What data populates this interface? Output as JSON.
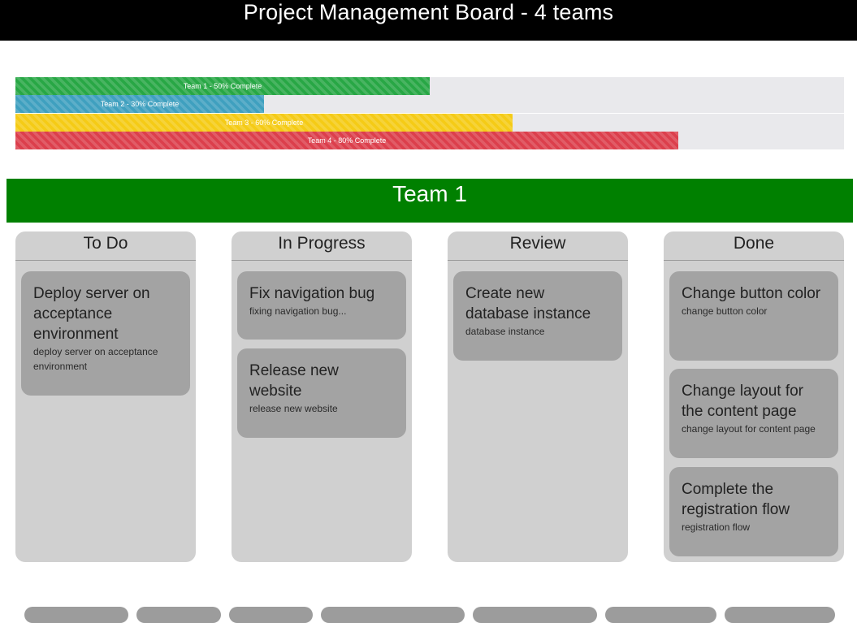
{
  "header": {
    "title": "Project Management Board - 4 teams"
  },
  "progress": [
    {
      "label": "Team 1 - 50% Complete",
      "percent": 50,
      "color": "#28a745"
    },
    {
      "label": "Team 2 - 30% Complete",
      "percent": 30,
      "color": "#3fa0bf"
    },
    {
      "label": "Team 3 - 60% Complete",
      "percent": 60,
      "color": "#f5cb16"
    },
    {
      "label": "Team 4 - 80% Complete",
      "percent": 80,
      "color": "#dc3f4c"
    }
  ],
  "board": {
    "team_title": "Team 1",
    "team_color": "#008000",
    "columns": [
      {
        "title": "To Do",
        "cards": [
          {
            "title": "Deploy server on acceptance environment",
            "desc": "deploy server on acceptance environment"
          }
        ]
      },
      {
        "title": "In Progress",
        "cards": [
          {
            "title": "Fix navigation bug",
            "desc": "fixing navigation bug..."
          },
          {
            "title": "Release new website",
            "desc": "release new website"
          }
        ]
      },
      {
        "title": "Review",
        "cards": [
          {
            "title": "Create new database instance",
            "desc": "database instance"
          }
        ]
      },
      {
        "title": "Done",
        "cards": [
          {
            "title": "Change button color",
            "desc": "change button color"
          },
          {
            "title": "Change layout for the content page",
            "desc": "change layout for content page"
          },
          {
            "title": "Complete the registration flow",
            "desc": "registration flow"
          }
        ]
      }
    ]
  }
}
